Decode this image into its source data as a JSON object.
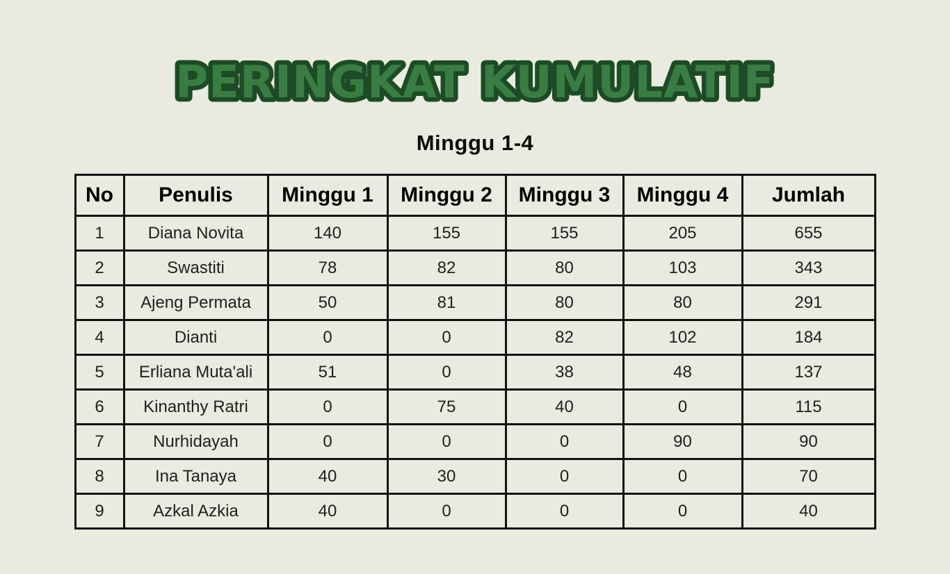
{
  "colors": {
    "background": "#e9ebe0",
    "title_fill": "#3a7d44",
    "title_outline": "#1d4b25",
    "table_border": "#121212",
    "header_text": "#000000",
    "cell_text": "#202020"
  },
  "chart_data": {
    "type": "table",
    "title": "PERINGKAT KUMULATIF",
    "subtitle": "Minggu 1-4",
    "columns": [
      "No",
      "Penulis",
      "Minggu 1",
      "Minggu 2",
      "Minggu 3",
      "Minggu 4",
      "Jumlah"
    ],
    "rows": [
      [
        "1",
        "Diana Novita",
        "140",
        "155",
        "155",
        "205",
        "655"
      ],
      [
        "2",
        "Swastiti",
        "78",
        "82",
        "80",
        "103",
        "343"
      ],
      [
        "3",
        "Ajeng Permata",
        "50",
        "81",
        "80",
        "80",
        "291"
      ],
      [
        "4",
        "Dianti",
        "0",
        "0",
        "82",
        "102",
        "184"
      ],
      [
        "5",
        "Erliana Muta'ali",
        "51",
        "0",
        "38",
        "48",
        "137"
      ],
      [
        "6",
        "Kinanthy Ratri",
        "0",
        "75",
        "40",
        "0",
        "115"
      ],
      [
        "7",
        "Nurhidayah",
        "0",
        "0",
        "0",
        "90",
        "90"
      ],
      [
        "8",
        "Ina Tanaya",
        "40",
        "30",
        "0",
        "0",
        "70"
      ],
      [
        "9",
        "Azkal Azkia",
        "40",
        "0",
        "0",
        "0",
        "40"
      ]
    ],
    "cell_column_names": [
      "row-number",
      "penulis-name",
      "minggu-1-value",
      "minggu-2-value",
      "minggu-3-value",
      "minggu-4-value",
      "jumlah-value"
    ]
  }
}
